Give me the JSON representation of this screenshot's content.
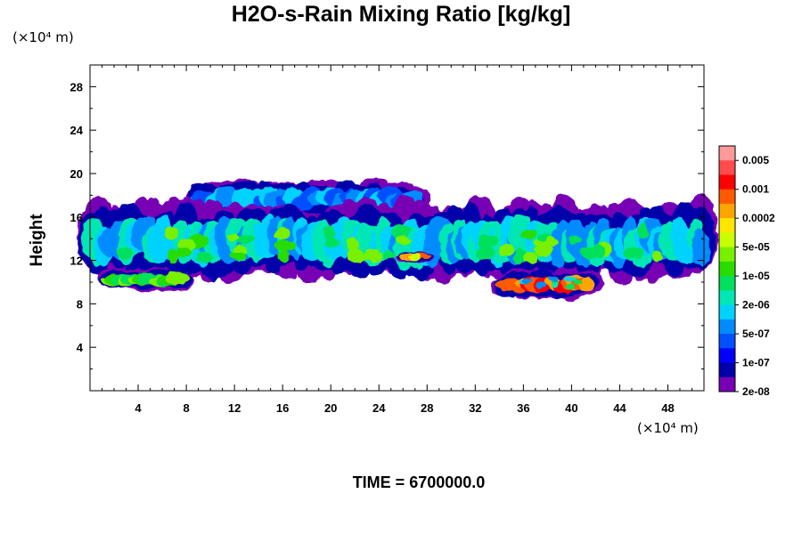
{
  "chart_data": {
    "type": "heatmap",
    "title": "H2O-s-Rain Mixing Ratio [kg/kg]",
    "ylabel": "Height",
    "xlabel": "",
    "x_unit_label": "(×10⁴ m)",
    "y_unit_label": "(×10⁴ m)",
    "xlim": [
      0,
      51
    ],
    "ylim": [
      0,
      30
    ],
    "x_ticks": [
      4,
      8,
      12,
      16,
      20,
      24,
      28,
      32,
      36,
      40,
      44,
      48
    ],
    "y_ticks": [
      4,
      8,
      12,
      16,
      20,
      24,
      28
    ],
    "colorbar": {
      "labels": [
        "0.005",
        "0.001",
        "0.0002",
        "5e-05",
        "1e-05",
        "2e-06",
        "5e-07",
        "1e-07",
        "2e-08"
      ],
      "colors": [
        "#ff9a9a",
        "#ff4b4b",
        "#ff0000",
        "#ff5a00",
        "#ffa500",
        "#ffe600",
        "#c8ff00",
        "#78f000",
        "#28dc00",
        "#00e05a",
        "#00e6b4",
        "#00d2ff",
        "#008cff",
        "#0050ff",
        "#0000ff",
        "#0000aa",
        "#7800b4"
      ]
    },
    "regions": [
      {
        "name": "upper anvil",
        "x": [
          8.8,
          27
        ],
        "y": [
          16.5,
          18.7
        ],
        "level": 12
      },
      {
        "name": "main layer",
        "x": [
          0,
          51
        ],
        "y": [
          11.5,
          16
        ],
        "level": 11
      },
      {
        "name": "low band west",
        "x": [
          1.5,
          7.7
        ],
        "y": [
          9.6,
          10.8
        ],
        "level": 8
      },
      {
        "name": "low band east",
        "x": [
          34.5,
          41.5
        ],
        "y": [
          9,
          10.6
        ],
        "level": 3
      },
      {
        "name": "peak core",
        "x": [
          26.5,
          27.5
        ],
        "y": [
          12,
          12.6
        ],
        "level": 4
      }
    ],
    "time_label": "TIME = 6700000.0"
  }
}
